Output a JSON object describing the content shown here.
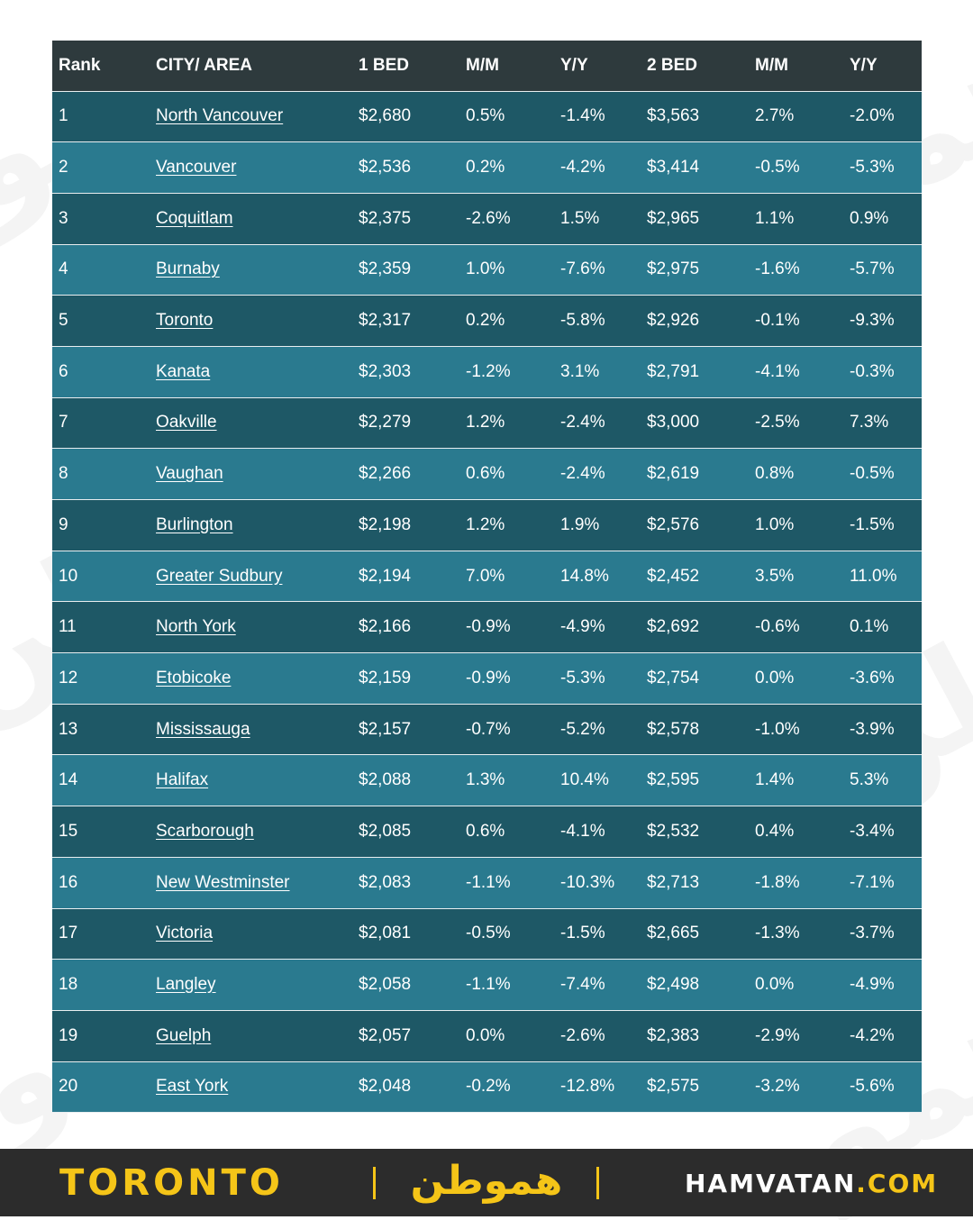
{
  "table": {
    "headers": [
      "Rank",
      "CITY/ AREA",
      "1 BED",
      "M/M",
      "Y/Y",
      "2 BED",
      "M/M",
      "Y/Y"
    ],
    "rows": [
      [
        "1",
        "North Vancouver",
        "$2,680",
        "0.5%",
        "-1.4%",
        "$3,563",
        "2.7%",
        "-2.0%"
      ],
      [
        "2",
        "Vancouver",
        "$2,536",
        "0.2%",
        "-4.2%",
        "$3,414",
        "-0.5%",
        "-5.3%"
      ],
      [
        "3",
        "Coquitlam",
        "$2,375",
        "-2.6%",
        "1.5%",
        "$2,965",
        "1.1%",
        "0.9%"
      ],
      [
        "4",
        "Burnaby",
        "$2,359",
        "1.0%",
        "-7.6%",
        "$2,975",
        "-1.6%",
        "-5.7%"
      ],
      [
        "5",
        "Toronto",
        "$2,317",
        "0.2%",
        "-5.8%",
        "$2,926",
        "-0.1%",
        "-9.3%"
      ],
      [
        "6",
        "Kanata",
        "$2,303",
        "-1.2%",
        "3.1%",
        "$2,791",
        "-4.1%",
        "-0.3%"
      ],
      [
        "7",
        "Oakville",
        "$2,279",
        "1.2%",
        "-2.4%",
        "$3,000",
        "-2.5%",
        "7.3%"
      ],
      [
        "8",
        "Vaughan",
        "$2,266",
        "0.6%",
        "-2.4%",
        "$2,619",
        "0.8%",
        "-0.5%"
      ],
      [
        "9",
        "Burlington",
        "$2,198",
        "1.2%",
        "1.9%",
        "$2,576",
        "1.0%",
        "-1.5%"
      ],
      [
        "10",
        "Greater Sudbury",
        "$2,194",
        "7.0%",
        "14.8%",
        "$2,452",
        "3.5%",
        "11.0%"
      ],
      [
        "11",
        "North York",
        "$2,166",
        "-0.9%",
        "-4.9%",
        "$2,692",
        "-0.6%",
        "0.1%"
      ],
      [
        "12",
        "Etobicoke",
        "$2,159",
        "-0.9%",
        "-5.3%",
        "$2,754",
        "0.0%",
        "-3.6%"
      ],
      [
        "13",
        "Mississauga",
        "$2,157",
        "-0.7%",
        "-5.2%",
        "$2,578",
        "-1.0%",
        "-3.9%"
      ],
      [
        "14",
        "Halifax",
        "$2,088",
        "1.3%",
        "10.4%",
        "$2,595",
        "1.4%",
        "5.3%"
      ],
      [
        "15",
        "Scarborough",
        "$2,085",
        "0.6%",
        "-4.1%",
        "$2,532",
        "0.4%",
        "-3.4%"
      ],
      [
        "16",
        "New Westminster",
        "$2,083",
        "-1.1%",
        "-10.3%",
        "$2,713",
        "-1.8%",
        "-7.1%"
      ],
      [
        "17",
        "Victoria",
        "$2,081",
        "-0.5%",
        "-1.5%",
        "$2,665",
        "-1.3%",
        "-3.7%"
      ],
      [
        "18",
        "Langley",
        "$2,058",
        "-1.1%",
        "-7.4%",
        "$2,498",
        "0.0%",
        "-4.9%"
      ],
      [
        "19",
        "Guelph",
        "$2,057",
        "0.0%",
        "-2.6%",
        "$2,383",
        "-2.9%",
        "-4.2%"
      ],
      [
        "20",
        "East York",
        "$2,048",
        "-0.2%",
        "-12.8%",
        "$2,575",
        "-3.2%",
        "-5.6%"
      ]
    ]
  },
  "footer": {
    "city": "TORONTO",
    "logo_text": "هموطن",
    "site_name": "HAMVATAN",
    "site_tld": ".COM"
  },
  "colors": {
    "header_bg": "#2e3a3d",
    "row_dark": "#1e5866",
    "row_light": "#2a7a8f",
    "footer_bg": "#2c2c2c",
    "accent_yellow": "#f5c518"
  }
}
